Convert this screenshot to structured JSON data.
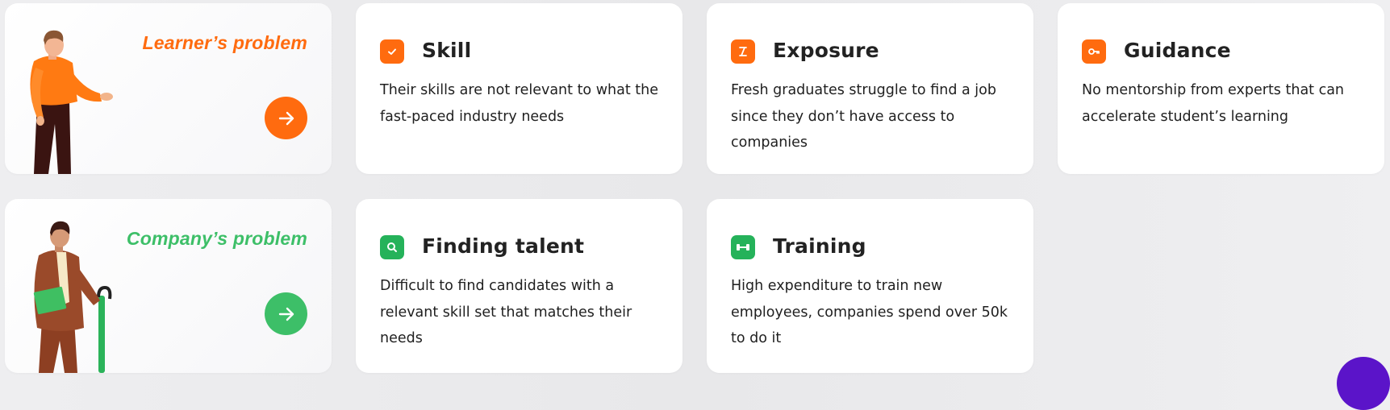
{
  "colors": {
    "learner_accent": "#ff6b0f",
    "company_accent": "#3dbf68"
  },
  "learner": {
    "title": "Learner’s problem",
    "arrow_icon": "arrow-right-icon",
    "cards": [
      {
        "icon": "checkmark-icon",
        "title": "Skill",
        "desc": "Their skills are not relevant to what the fast-paced industry needs"
      },
      {
        "icon": "ladder-icon",
        "title": "Exposure",
        "desc": "Fresh graduates struggle to find a job since they don’t have access to companies"
      },
      {
        "icon": "key-icon",
        "title": "Guidance",
        "desc": "No mentorship from experts that can accelerate student’s learning"
      }
    ]
  },
  "company": {
    "title": "Company’s problem",
    "arrow_icon": "arrow-right-icon",
    "cards": [
      {
        "icon": "search-icon",
        "title": "Finding talent",
        "desc": "Difficult to find candidates with a relevant skill set that matches their needs"
      },
      {
        "icon": "dumbbell-icon",
        "title": "Training",
        "desc": "High expenditure to train new employees, companies spend over 50k to do it"
      }
    ]
  }
}
